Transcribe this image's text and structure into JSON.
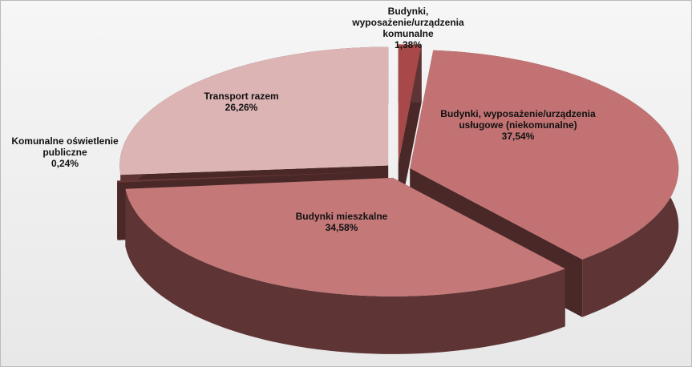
{
  "chart_data": {
    "type": "pie3d",
    "categories": [
      "Budynki, wyposażenie/urządzenia komunalne",
      "Budynki, wyposażenie/urządzenia usługowe (niekomunalne)",
      "Budynki mieszkalne",
      "Komunalne oświetlenie publiczne",
      "Transport razem"
    ],
    "values": [
      1.38,
      37.54,
      34.58,
      0.24,
      26.26
    ],
    "value_labels": [
      "1,38%",
      "37,54%",
      "34,58%",
      "0,24%",
      "26,26%"
    ],
    "colors": [
      "#a84848",
      "#c27272",
      "#c47878",
      "#6a3838",
      "#dcb4b4"
    ],
    "side_color": "#5e3434"
  }
}
